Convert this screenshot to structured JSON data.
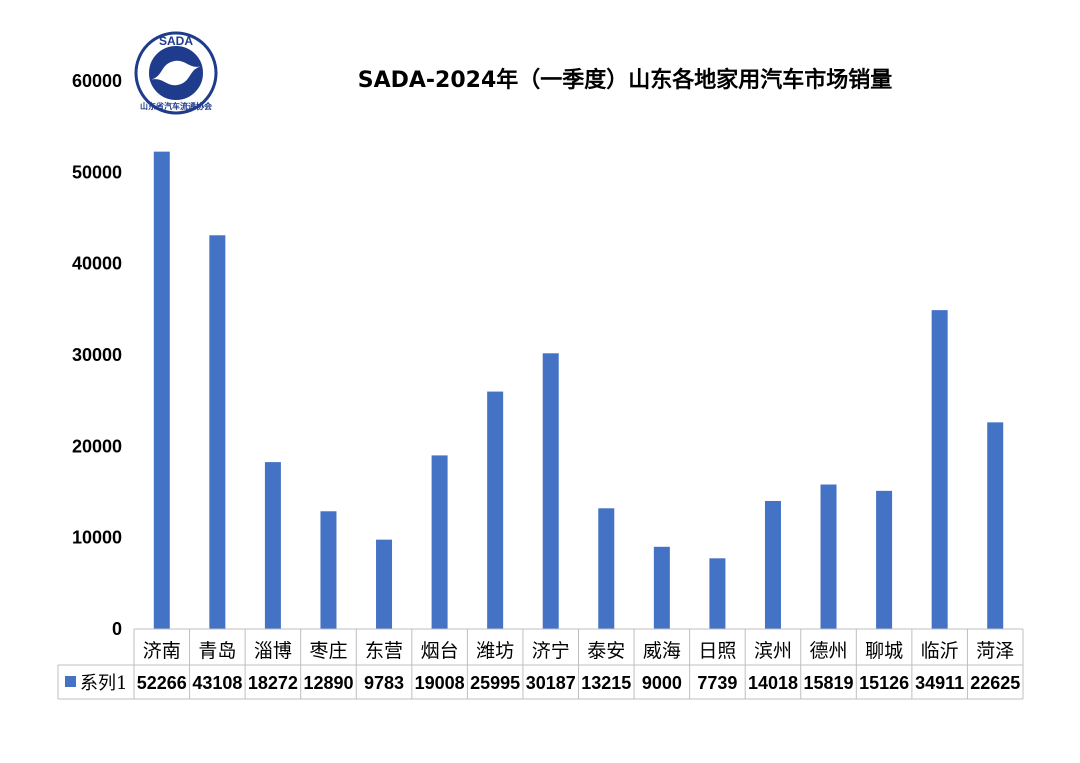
{
  "colors": {
    "bar": "#4472C4",
    "logo": "#1f3b8c"
  },
  "logo": {
    "top_text": "SADA",
    "bottom_text": "山东省汽车流通协会"
  },
  "chart_data": {
    "type": "bar",
    "title": "SADA-2024年（一季度）山东各地家用汽车市场销量",
    "categories": [
      "济南",
      "青岛",
      "淄博",
      "枣庄",
      "东营",
      "烟台",
      "潍坊",
      "济宁",
      "泰安",
      "威海",
      "日照",
      "滨州",
      "德州",
      "聊城",
      "临沂",
      "菏泽"
    ],
    "series": [
      {
        "name": "系列1",
        "values": [
          52266,
          43108,
          18272,
          12890,
          9783,
          19008,
          25995,
          30187,
          13215,
          9000,
          7739,
          14018,
          15819,
          15126,
          34911,
          22625
        ]
      }
    ],
    "ylim": [
      0,
      60000
    ],
    "yticks": [
      0,
      10000,
      20000,
      30000,
      40000,
      50000,
      60000
    ],
    "grid": false,
    "legend": "data-table"
  }
}
